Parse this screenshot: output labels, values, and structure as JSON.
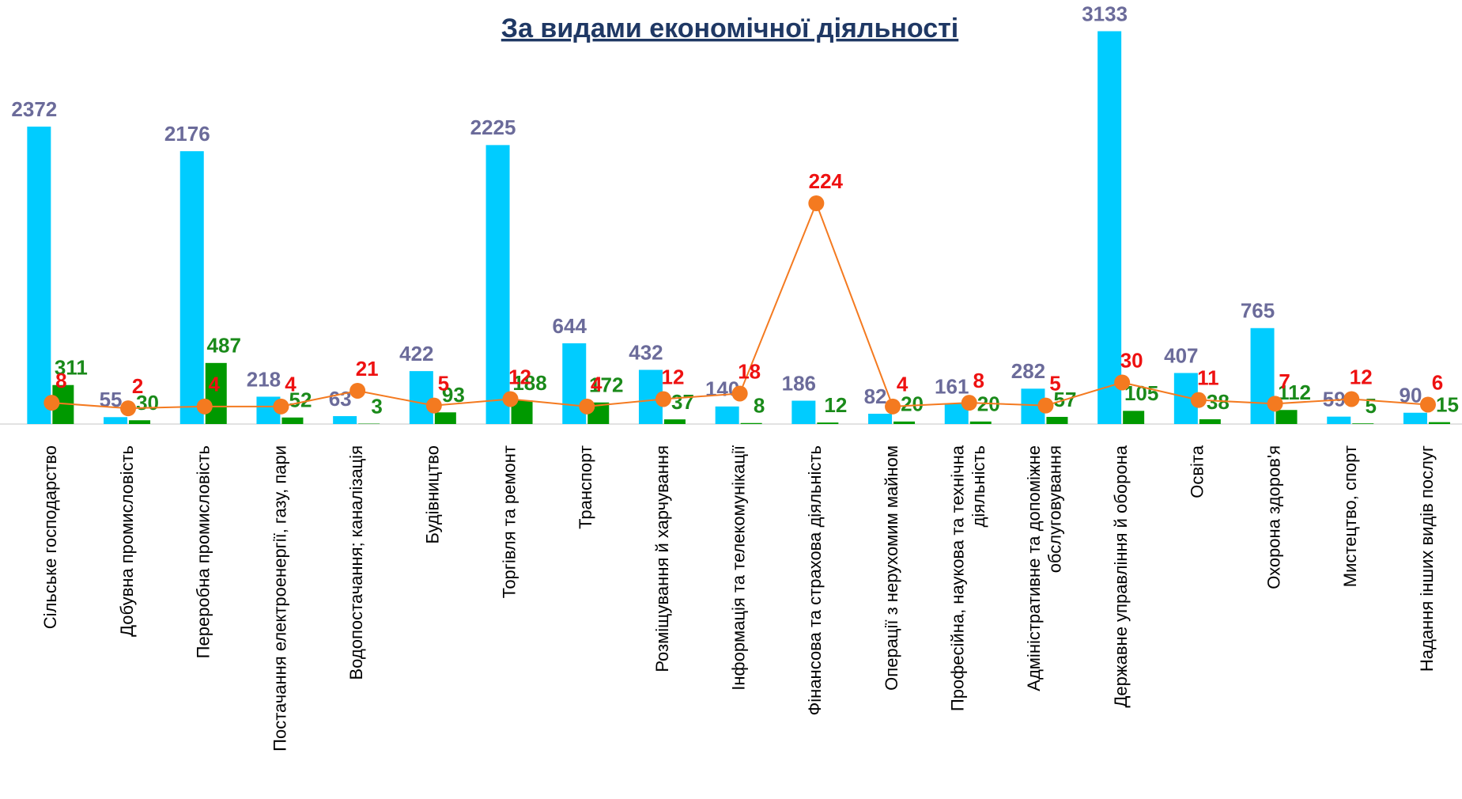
{
  "chart_data": {
    "type": "bar",
    "title": "За видами економічної діяльності",
    "categories": [
      "Сільське господарство",
      "Добувна промисловість",
      "Переробна промисловість",
      "Постачання електроенергії, газу, пари",
      "Водопостачання; каналізація",
      "Будівництво",
      "Торгівля та ремонт",
      "Транспорт",
      "Розміщування й харчування",
      "Інформація та телекомунікації",
      "Фінансова та страхова діяльність",
      "Операції з нерухомим майном",
      "Професійна, наукова та технічна\nдіяльність",
      "Адміністративне та допоміжне\nобслуговування",
      "Державне управління й оборона",
      "Освіта",
      "Охорона здоров'я",
      "Мистецтво, спорт",
      "Надання інших видів послуг"
    ],
    "ylim": [
      0,
      3300
    ],
    "y2lim": [
      -15,
      230
    ],
    "series": [
      {
        "type": "bar",
        "color": "#00ccff",
        "label_color": "#6b6b9a",
        "values": [
          2372,
          55,
          2176,
          218,
          63,
          422,
          2225,
          644,
          432,
          140,
          186,
          82,
          161,
          282,
          3133,
          407,
          765,
          59,
          90
        ]
      },
      {
        "type": "bar",
        "color": "#009900",
        "label_color": "#1a8a1a",
        "values": [
          311,
          30,
          487,
          52,
          3,
          93,
          188,
          172,
          37,
          8,
          12,
          20,
          20,
          57,
          105,
          38,
          112,
          5,
          15
        ]
      },
      {
        "type": "line",
        "axis": "y2",
        "color": "#f47a20",
        "label_color": "#ee1111",
        "values": [
          8,
          2,
          4,
          4,
          21,
          5,
          12,
          4,
          12,
          18,
          224,
          4,
          8,
          5,
          30,
          11,
          7,
          12,
          6
        ]
      }
    ]
  }
}
